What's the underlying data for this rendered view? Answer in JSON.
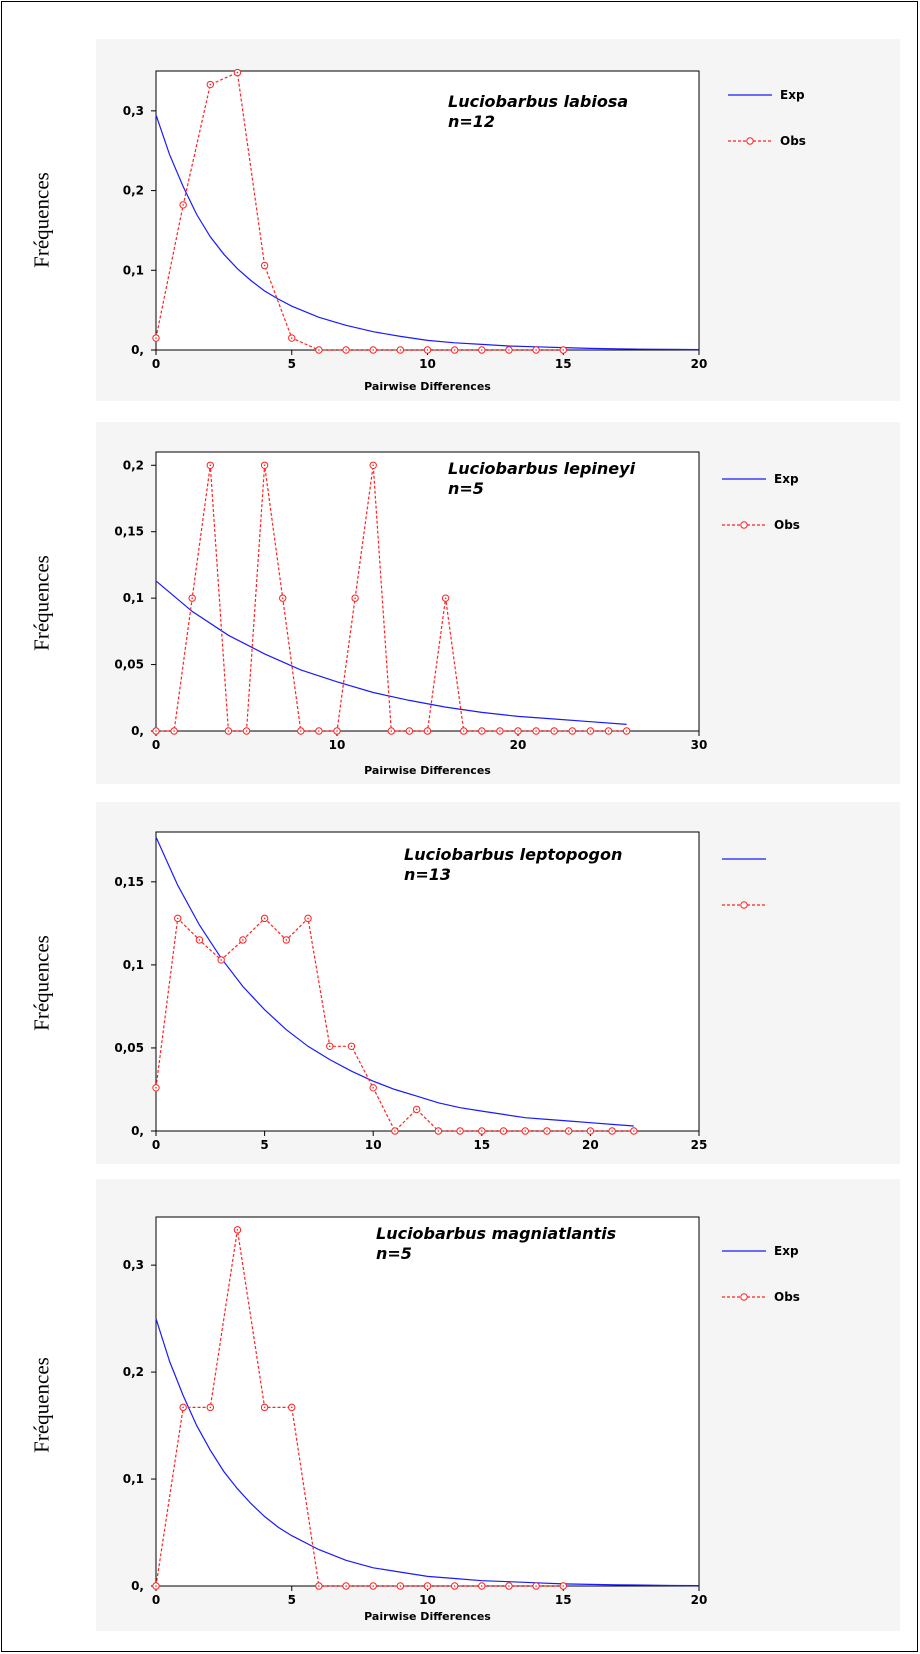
{
  "y_axis_label": "Fréquences",
  "chart_data": [
    {
      "type": "line",
      "title": "Luciobarbus labiosa",
      "subtitle": "n=12",
      "xlabel": "Pairwise Differences",
      "ylabel": "Fréquences",
      "xlim": [
        0,
        20
      ],
      "ylim": [
        0,
        0.35
      ],
      "xticks": [
        0,
        5,
        10,
        15,
        20
      ],
      "yticks": [
        0,
        0.1,
        0.2,
        0.3
      ],
      "ytick_labels": [
        "0,",
        "0,1",
        "0,2",
        "0,3"
      ],
      "legend_position": "top-right",
      "series": [
        {
          "name": "Exp",
          "style": "solid",
          "color": "#1a1aff",
          "x": [
            0,
            0.5,
            1,
            1.5,
            2,
            2.5,
            3,
            3.5,
            4,
            4.5,
            5,
            6,
            7,
            8,
            9,
            10,
            11,
            12,
            13,
            14,
            15,
            16,
            17,
            18,
            19,
            20
          ],
          "y": [
            0.295,
            0.245,
            0.205,
            0.17,
            0.142,
            0.12,
            0.102,
            0.087,
            0.074,
            0.064,
            0.055,
            0.041,
            0.031,
            0.023,
            0.017,
            0.012,
            0.009,
            0.007,
            0.005,
            0.004,
            0.003,
            0.002,
            0.0015,
            0.001,
            0.0008,
            0.0005
          ]
        },
        {
          "name": "Obs",
          "style": "dashed-marker",
          "color": "#ff2222",
          "x": [
            0,
            1,
            2,
            3,
            4,
            5,
            6,
            7,
            8,
            9,
            10,
            11,
            12,
            13,
            14,
            15
          ],
          "y": [
            0.015,
            0.182,
            0.333,
            0.348,
            0.106,
            0.015,
            0,
            0,
            0,
            0,
            0,
            0,
            0,
            0,
            0,
            0
          ]
        }
      ]
    },
    {
      "type": "line",
      "title": "Luciobarbus lepineyi",
      "subtitle": "n=5",
      "xlabel": "Pairwise Differences",
      "ylabel": "Fréquences",
      "xlim": [
        0,
        30
      ],
      "ylim": [
        0,
        0.21
      ],
      "xticks": [
        0,
        10,
        20,
        30
      ],
      "yticks": [
        0,
        0.05,
        0.1,
        0.15,
        0.2
      ],
      "ytick_labels": [
        "0,",
        "0,05",
        "0,1",
        "0,15",
        "0,2"
      ],
      "legend_position": "top-right",
      "series": [
        {
          "name": "Exp",
          "style": "solid",
          "color": "#1a1aff",
          "x": [
            0,
            2,
            4,
            6,
            8,
            10,
            12,
            14,
            16,
            18,
            20,
            22,
            24,
            26
          ],
          "y": [
            0.113,
            0.09,
            0.072,
            0.058,
            0.046,
            0.037,
            0.029,
            0.023,
            0.018,
            0.014,
            0.011,
            0.009,
            0.007,
            0.005
          ]
        },
        {
          "name": "Obs",
          "style": "dashed-marker",
          "color": "#ff2222",
          "x": [
            0,
            1,
            2,
            3,
            4,
            5,
            6,
            7,
            8,
            9,
            10,
            11,
            12,
            13,
            14,
            15,
            16,
            17,
            18,
            19,
            20,
            21,
            22,
            23,
            24,
            25,
            26
          ],
          "y": [
            0,
            0,
            0.1,
            0.2,
            0,
            0,
            0.2,
            0.1,
            0,
            0,
            0,
            0.1,
            0.2,
            0,
            0,
            0,
            0.1,
            0,
            0,
            0,
            0,
            0,
            0,
            0,
            0,
            0,
            0
          ]
        }
      ]
    },
    {
      "type": "line",
      "title": "Luciobarbus leptopogon",
      "subtitle": "n=13",
      "xlabel": "",
      "ylabel": "Fréquences",
      "xlim": [
        0,
        25
      ],
      "ylim": [
        0,
        0.18
      ],
      "xticks": [
        0,
        5,
        10,
        15,
        20,
        25
      ],
      "yticks": [
        0,
        0.05,
        0.1,
        0.15
      ],
      "ytick_labels": [
        "0,",
        "0,05",
        "0,1",
        "0,15"
      ],
      "legend_position": "top-right",
      "series": [
        {
          "name": "",
          "style": "solid",
          "color": "#1a1aff",
          "x": [
            0,
            1,
            2,
            3,
            4,
            5,
            6,
            7,
            8,
            9,
            10,
            11,
            12,
            13,
            14,
            15,
            16,
            17,
            18,
            19,
            20,
            21,
            22
          ],
          "y": [
            0.177,
            0.148,
            0.124,
            0.104,
            0.087,
            0.073,
            0.061,
            0.051,
            0.043,
            0.036,
            0.03,
            0.025,
            0.021,
            0.017,
            0.014,
            0.012,
            0.01,
            0.008,
            0.007,
            0.006,
            0.005,
            0.004,
            0.003
          ]
        },
        {
          "name": "",
          "style": "dashed-marker",
          "color": "#ff2222",
          "x": [
            0,
            1,
            2,
            3,
            4,
            5,
            6,
            7,
            8,
            9,
            10,
            11,
            12,
            13,
            14,
            15,
            16,
            17,
            18,
            19,
            20,
            21,
            22
          ],
          "y": [
            0.026,
            0.128,
            0.115,
            0.103,
            0.115,
            0.128,
            0.115,
            0.128,
            0.051,
            0.051,
            0.026,
            0,
            0.013,
            0,
            0,
            0,
            0,
            0,
            0,
            0,
            0,
            0,
            0
          ]
        }
      ]
    },
    {
      "type": "line",
      "title": "Luciobarbus magniatlantis",
      "subtitle": "n=5",
      "xlabel": "Pairwise Differences",
      "ylabel": "Fréquences",
      "xlim": [
        0,
        20
      ],
      "ylim": [
        0,
        0.345
      ],
      "xticks": [
        0,
        5,
        10,
        15,
        20
      ],
      "yticks": [
        0,
        0.1,
        0.2,
        0.3
      ],
      "ytick_labels": [
        "0,",
        "0,1",
        "0,2",
        "0,3"
      ],
      "legend_position": "top-right",
      "series": [
        {
          "name": "Exp",
          "style": "solid",
          "color": "#1a1aff",
          "x": [
            0,
            0.5,
            1,
            1.5,
            2,
            2.5,
            3,
            3.5,
            4,
            4.5,
            5,
            6,
            7,
            8,
            9,
            10,
            11,
            12,
            13,
            14,
            15,
            16,
            17,
            18,
            19,
            20
          ],
          "y": [
            0.25,
            0.21,
            0.178,
            0.15,
            0.127,
            0.107,
            0.091,
            0.077,
            0.065,
            0.055,
            0.047,
            0.034,
            0.024,
            0.017,
            0.013,
            0.009,
            0.007,
            0.005,
            0.004,
            0.003,
            0.002,
            0.0015,
            0.001,
            0.0008,
            0.0005,
            0.0004
          ]
        },
        {
          "name": "Obs",
          "style": "dashed-marker",
          "color": "#ff2222",
          "x": [
            0,
            1,
            2,
            3,
            4,
            5,
            6,
            7,
            8,
            9,
            10,
            11,
            12,
            13,
            14,
            15
          ],
          "y": [
            0,
            0.167,
            0.167,
            0.333,
            0.167,
            0.167,
            0,
            0,
            0,
            0,
            0,
            0,
            0,
            0,
            0,
            0
          ]
        }
      ]
    }
  ]
}
